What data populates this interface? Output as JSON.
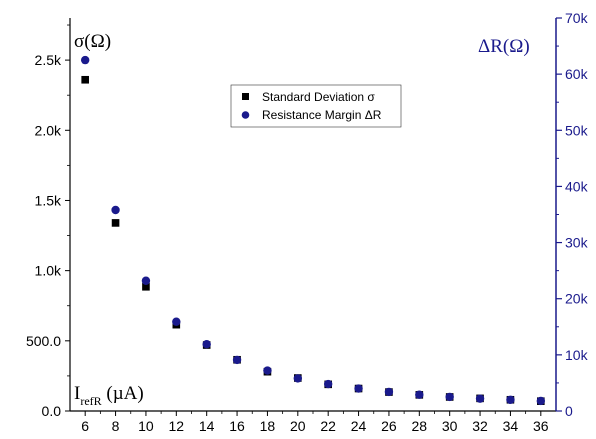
{
  "chart_data": {
    "type": "scatter",
    "x": [
      6,
      8,
      10,
      12,
      14,
      16,
      18,
      20,
      22,
      24,
      26,
      28,
      30,
      32,
      34,
      36
    ],
    "xlabel_main": "I",
    "xlabel_sub": "refR",
    "xlabel_unit": " (µA)",
    "xlim": [
      5,
      37
    ],
    "x_ticks": [
      "6",
      "8",
      "10",
      "12",
      "14",
      "16",
      "18",
      "20",
      "22",
      "24",
      "26",
      "28",
      "30",
      "32",
      "34",
      "36"
    ],
    "y_left": {
      "label": "σ(Ω)",
      "ylim": [
        0,
        2800
      ],
      "ticks": [
        0,
        500,
        1000,
        1500,
        2000,
        2500
      ],
      "tick_labels": [
        "0.0",
        "500.0",
        "1.0k",
        "1.5k",
        "2.0k",
        "2.5k"
      ],
      "color": "#000000"
    },
    "y_right": {
      "label": "ΔR(Ω)",
      "ylim": [
        0,
        70000
      ],
      "ticks": [
        0,
        10000,
        20000,
        30000,
        40000,
        50000,
        60000,
        70000
      ],
      "tick_labels": [
        "0",
        "10k",
        "20k",
        "30k",
        "40k",
        "50k",
        "60k",
        "70k"
      ],
      "color": "#1a1a8c"
    },
    "series": [
      {
        "name": "Standard Deviation σ",
        "axis": "left",
        "marker": "square",
        "color": "#000000",
        "values": [
          2360,
          1340,
          885,
          615,
          470,
          365,
          280,
          235,
          190,
          160,
          135,
          115,
          100,
          90,
          80,
          70
        ]
      },
      {
        "name": "Resistance Margin ΔR",
        "axis": "right",
        "marker": "circle",
        "color": "#1a1a8c",
        "values": [
          62500,
          35800,
          23200,
          15900,
          11900,
          9100,
          7200,
          5800,
          4800,
          4000,
          3400,
          2900,
          2500,
          2200,
          2000,
          1800
        ]
      }
    ],
    "legend_position": "top-center",
    "grid": false
  }
}
